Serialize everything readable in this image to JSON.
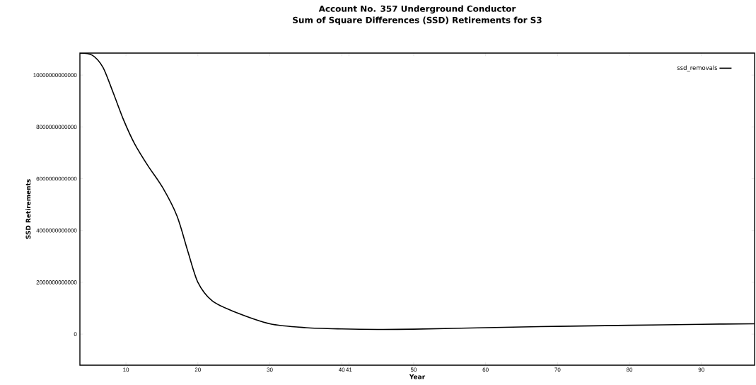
{
  "chart_data": {
    "type": "line",
    "title": "Account No. 357 Underground Conductor",
    "subtitle": "Sum of Square Differences (SSD) Retirements for S3",
    "xlabel": "Year",
    "ylabel": "SSD Retirements",
    "xlim": [
      3.6,
      97.4
    ],
    "ylim": [
      -1200000000000,
      10850000000000
    ],
    "xticks": [
      10,
      20,
      30,
      40,
      41,
      50,
      60,
      70,
      80,
      90
    ],
    "yticks": [
      0,
      2000000000000,
      4000000000000,
      6000000000000,
      8000000000000,
      10000000000000
    ],
    "legend": "top right",
    "grid": false,
    "series": [
      {
        "name": "ssd_removals",
        "color": "#000000",
        "x": [
          3.6,
          5.3,
          6.8,
          8.2,
          9.7,
          11.2,
          13.1,
          15.1,
          17.1,
          18.6,
          20,
          22,
          25,
          30,
          35,
          40,
          45,
          50,
          60,
          70,
          80,
          90,
          97.4
        ],
        "values": [
          10850000000000,
          10770000000000,
          10300000000000,
          9340000000000,
          8250000000000,
          7350000000000,
          6480000000000,
          5660000000000,
          4560000000000,
          3200000000000,
          2000000000000,
          1280000000000,
          870000000000,
          400000000000,
          250000000000,
          200000000000,
          180000000000,
          190000000000,
          250000000000,
          300000000000,
          340000000000,
          380000000000,
          400000000000
        ]
      }
    ]
  }
}
